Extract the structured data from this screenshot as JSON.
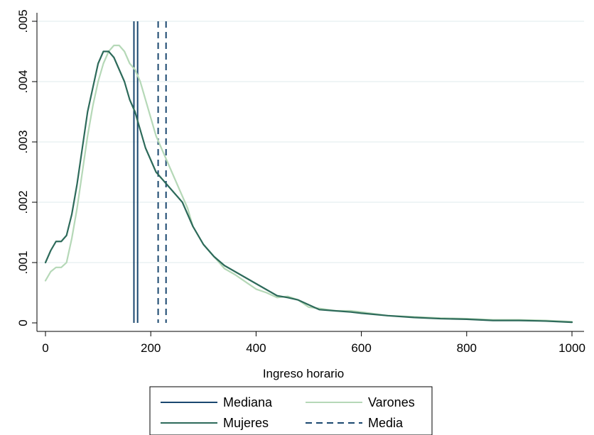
{
  "chart_data": {
    "type": "line",
    "title": "",
    "xlabel": "Ingreso horario",
    "ylabel": "",
    "xlim": [
      0,
      1000
    ],
    "ylim": [
      0,
      0.005
    ],
    "xticks": [
      "0",
      "200",
      "400",
      "600",
      "800",
      "1000"
    ],
    "xtick_values": [
      0,
      200,
      400,
      600,
      800,
      1000
    ],
    "yticks": [
      "0",
      ".001",
      ".002",
      ".003",
      ".004",
      ".005"
    ],
    "ytick_values": [
      0,
      0.001,
      0.002,
      0.003,
      0.004,
      0.005
    ],
    "grid": "horizontal",
    "legend_position": "bottom",
    "colors": {
      "mediana": "#1a476f",
      "mujeres": "#2d6a5a",
      "varones": "#b5d8b7",
      "media": "#1a476f",
      "grid": "#eaf2f3"
    },
    "legend": [
      {
        "label": "Mediana",
        "key": "mediana",
        "style": "solid"
      },
      {
        "label": "Varones",
        "key": "varones",
        "style": "solid"
      },
      {
        "label": "Mujeres",
        "key": "mujeres",
        "style": "solid"
      },
      {
        "label": "Media",
        "key": "media",
        "style": "dashed"
      }
    ],
    "series": [
      {
        "name": "Varones",
        "key": "varones",
        "x": [
          0,
          10,
          20,
          30,
          40,
          50,
          60,
          70,
          80,
          90,
          100,
          110,
          120,
          130,
          140,
          150,
          160,
          170,
          180,
          190,
          200,
          210,
          220,
          230,
          240,
          250,
          260,
          270,
          280,
          300,
          320,
          340,
          360,
          380,
          400,
          420,
          440,
          460,
          480,
          500,
          520,
          550,
          580,
          600,
          650,
          700,
          750,
          800,
          850,
          900,
          950,
          1000
        ],
        "y": [
          0.0007,
          0.00085,
          0.00092,
          0.00092,
          0.001,
          0.0014,
          0.0019,
          0.0025,
          0.0031,
          0.0036,
          0.004,
          0.0043,
          0.0045,
          0.0046,
          0.0046,
          0.0045,
          0.0043,
          0.0042,
          0.004,
          0.0037,
          0.0034,
          0.0031,
          0.0029,
          0.0027,
          0.0025,
          0.0023,
          0.0021,
          0.0019,
          0.0016,
          0.0013,
          0.0011,
          0.0009,
          0.0008,
          0.00068,
          0.00056,
          0.0005,
          0.00042,
          0.00044,
          0.00038,
          0.00026,
          0.00024,
          0.0002,
          0.0002,
          0.00018,
          0.00012,
          0.0001,
          8e-05,
          7e-05,
          5e-05,
          5e-05,
          4e-05,
          2e-05
        ]
      },
      {
        "name": "Mujeres",
        "key": "mujeres",
        "x": [
          0,
          10,
          20,
          30,
          40,
          50,
          60,
          70,
          80,
          90,
          100,
          110,
          120,
          130,
          140,
          150,
          160,
          170,
          180,
          190,
          200,
          210,
          220,
          230,
          240,
          250,
          260,
          270,
          280,
          300,
          320,
          340,
          360,
          380,
          400,
          420,
          440,
          460,
          480,
          500,
          520,
          550,
          580,
          600,
          650,
          700,
          750,
          800,
          850,
          900,
          950,
          1000
        ],
        "y": [
          0.001,
          0.0012,
          0.00135,
          0.00135,
          0.00145,
          0.0018,
          0.0023,
          0.0029,
          0.0035,
          0.0039,
          0.0043,
          0.0045,
          0.0045,
          0.0044,
          0.0042,
          0.004,
          0.0037,
          0.0035,
          0.0032,
          0.0029,
          0.0027,
          0.0025,
          0.0024,
          0.0023,
          0.0022,
          0.0021,
          0.002,
          0.0018,
          0.0016,
          0.0013,
          0.0011,
          0.00095,
          0.00085,
          0.00075,
          0.00065,
          0.00055,
          0.00045,
          0.00042,
          0.00038,
          0.0003,
          0.00022,
          0.0002,
          0.00018,
          0.00016,
          0.00012,
          9e-05,
          7e-05,
          6e-05,
          4e-05,
          4e-05,
          3e-05,
          1e-05
        ]
      }
    ],
    "vlines": [
      {
        "key": "mediana",
        "x": 168,
        "style": "solid"
      },
      {
        "key": "mediana",
        "x": 175,
        "style": "solid"
      },
      {
        "key": "media",
        "x": 214,
        "style": "dashed"
      },
      {
        "key": "media",
        "x": 229,
        "style": "dashed"
      }
    ]
  }
}
